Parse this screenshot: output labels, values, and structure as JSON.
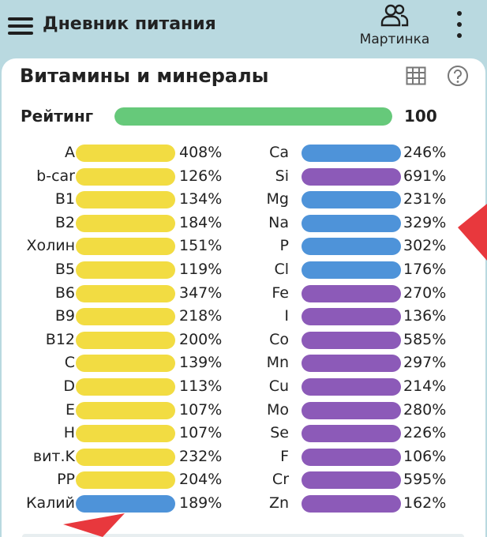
{
  "appbar": {
    "title": "Дневник питания",
    "profile_label": "Мартинка",
    "icons": {
      "menu": "menu-icon",
      "profile": "people-icon",
      "more": "more-vert-icon"
    }
  },
  "card": {
    "title": "Витамины и минералы",
    "icons": {
      "table": "table-icon",
      "help": "help-icon"
    },
    "rating": {
      "label": "Рейтинг",
      "value": "100",
      "fraction": 1.0,
      "color": "#66c97a"
    },
    "colors": {
      "yellow": "#f2dc42",
      "blue": "#4e93d9",
      "purple": "#8c5ab8"
    },
    "vitamins": [
      {
        "label": "A",
        "pct": "408%",
        "color": "yellow"
      },
      {
        "label": "b-car",
        "pct": "126%",
        "color": "yellow"
      },
      {
        "label": "B1",
        "pct": "134%",
        "color": "yellow"
      },
      {
        "label": "B2",
        "pct": "184%",
        "color": "yellow"
      },
      {
        "label": "Холин",
        "pct": "151%",
        "color": "yellow"
      },
      {
        "label": "B5",
        "pct": "119%",
        "color": "yellow"
      },
      {
        "label": "B6",
        "pct": "347%",
        "color": "yellow"
      },
      {
        "label": "B9",
        "pct": "218%",
        "color": "yellow"
      },
      {
        "label": "B12",
        "pct": "200%",
        "color": "yellow"
      },
      {
        "label": "C",
        "pct": "139%",
        "color": "yellow"
      },
      {
        "label": "D",
        "pct": "113%",
        "color": "yellow"
      },
      {
        "label": "E",
        "pct": "107%",
        "color": "yellow"
      },
      {
        "label": "H",
        "pct": "107%",
        "color": "yellow"
      },
      {
        "label": "вит.K",
        "pct": "232%",
        "color": "yellow"
      },
      {
        "label": "PP",
        "pct": "204%",
        "color": "yellow"
      },
      {
        "label": "Калий",
        "pct": "189%",
        "color": "blue"
      }
    ],
    "minerals": [
      {
        "label": "Ca",
        "pct": "246%",
        "color": "blue"
      },
      {
        "label": "Si",
        "pct": "691%",
        "color": "purple"
      },
      {
        "label": "Mg",
        "pct": "231%",
        "color": "blue"
      },
      {
        "label": "Na",
        "pct": "329%",
        "color": "blue"
      },
      {
        "label": "P",
        "pct": "302%",
        "color": "blue"
      },
      {
        "label": "Cl",
        "pct": "176%",
        "color": "blue"
      },
      {
        "label": "Fe",
        "pct": "270%",
        "color": "purple"
      },
      {
        "label": "I",
        "pct": "136%",
        "color": "purple"
      },
      {
        "label": "Co",
        "pct": "585%",
        "color": "purple"
      },
      {
        "label": "Mn",
        "pct": "297%",
        "color": "purple"
      },
      {
        "label": "Cu",
        "pct": "214%",
        "color": "purple"
      },
      {
        "label": "Mo",
        "pct": "280%",
        "color": "purple"
      },
      {
        "label": "Se",
        "pct": "226%",
        "color": "purple"
      },
      {
        "label": "F",
        "pct": "106%",
        "color": "purple"
      },
      {
        "label": "Cr",
        "pct": "595%",
        "color": "purple"
      },
      {
        "label": "Zn",
        "pct": "162%",
        "color": "purple"
      }
    ]
  },
  "annotations": {
    "arrow_color": "#e8383d"
  }
}
